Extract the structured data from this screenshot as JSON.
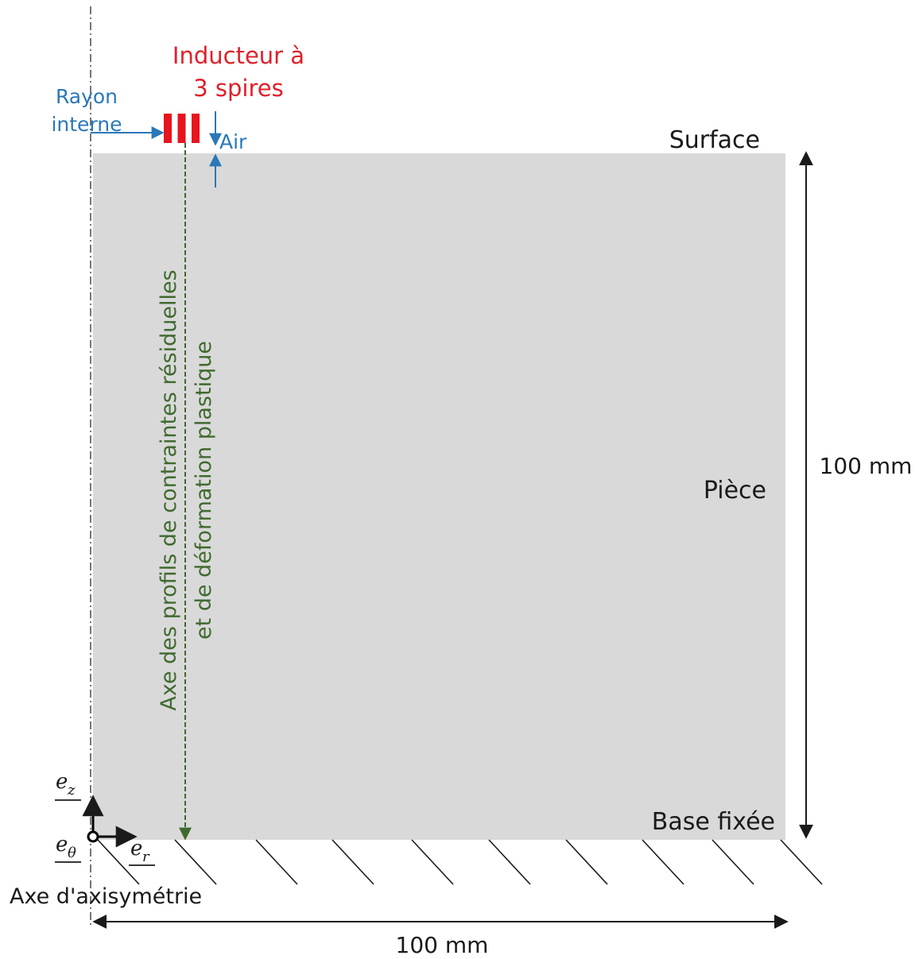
{
  "colors": {
    "piece_fill": "#d9d9d9",
    "inductor": "#e8141e",
    "blue": "#2a78b8",
    "green": "#3f6a2e",
    "black": "#1a1a1a"
  },
  "labels": {
    "inducteur_line1": "Inducteur à",
    "inducteur_line2": "3 spires",
    "rayon_line1": "Rayon",
    "rayon_line2": "interne",
    "air": "Air",
    "surface": "Surface",
    "piece": "Pièce",
    "base": "Base fixée",
    "axe_axi": "Axe d'axisymétrie",
    "dim_vertical": "100 mm",
    "dim_horizontal": "100 mm",
    "profile_line1": "Axe des profils de contraintes résiduelles",
    "profile_line2": "et de déformation plastique"
  },
  "axes": {
    "ez_base": "e",
    "ez_sub": "z",
    "er_base": "e",
    "er_sub": "r",
    "etheta_base": "e",
    "etheta_sub": "θ"
  },
  "inductor": {
    "turns": 3
  }
}
